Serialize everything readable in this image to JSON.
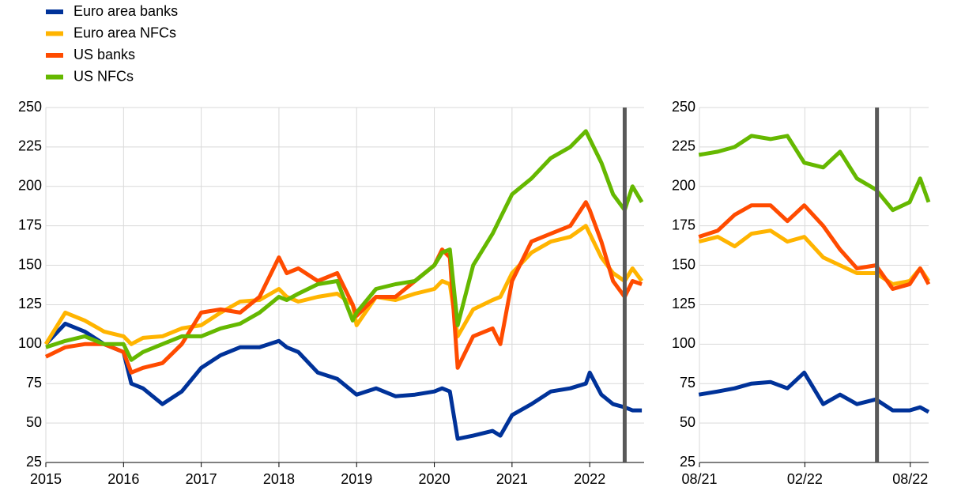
{
  "chart_data": [
    {
      "type": "line",
      "x": [
        2015.0,
        2015.25,
        2015.5,
        2015.75,
        2016.0,
        2016.1,
        2016.25,
        2016.5,
        2016.75,
        2017.0,
        2017.25,
        2017.5,
        2017.75,
        2018.0,
        2018.1,
        2018.25,
        2018.5,
        2018.75,
        2018.95,
        2019.0,
        2019.25,
        2019.5,
        2019.75,
        2020.0,
        2020.1,
        2020.2,
        2020.3,
        2020.5,
        2020.75,
        2020.85,
        2021.0,
        2021.25,
        2021.5,
        2021.75,
        2021.95,
        2022.0,
        2022.15,
        2022.3,
        2022.45,
        2022.55,
        2022.67
      ],
      "series": [
        {
          "name": "Euro area banks",
          "color": "#003299",
          "values": [
            100,
            113,
            108,
            100,
            95,
            75,
            72,
            62,
            70,
            85,
            93,
            98,
            98,
            102,
            98,
            95,
            82,
            78,
            70,
            68,
            72,
            67,
            68,
            70,
            72,
            70,
            40,
            42,
            45,
            42,
            55,
            62,
            70,
            72,
            75,
            82,
            68,
            62,
            60,
            58,
            58
          ]
        },
        {
          "name": "Euro area NFCs",
          "color": "#ffb400",
          "values": [
            100,
            120,
            115,
            108,
            105,
            100,
            104,
            105,
            110,
            112,
            120,
            127,
            128,
            135,
            130,
            127,
            130,
            132,
            125,
            112,
            130,
            128,
            132,
            135,
            140,
            138,
            105,
            122,
            128,
            130,
            145,
            158,
            165,
            168,
            175,
            170,
            155,
            145,
            140,
            148,
            140
          ]
        },
        {
          "name": "US banks",
          "color": "#ff4b00",
          "values": [
            92,
            98,
            100,
            100,
            95,
            82,
            85,
            88,
            100,
            120,
            122,
            120,
            130,
            155,
            145,
            148,
            140,
            145,
            125,
            118,
            130,
            130,
            140,
            150,
            160,
            155,
            85,
            105,
            110,
            100,
            140,
            165,
            170,
            175,
            190,
            185,
            165,
            140,
            130,
            140,
            138
          ]
        },
        {
          "name": "US NFCs",
          "color": "#65b800",
          "values": [
            98,
            102,
            105,
            100,
            100,
            90,
            95,
            100,
            105,
            105,
            110,
            113,
            120,
            130,
            128,
            132,
            138,
            140,
            115,
            120,
            135,
            138,
            140,
            150,
            158,
            160,
            112,
            150,
            170,
            180,
            195,
            205,
            218,
            225,
            235,
            230,
            215,
            195,
            185,
            200,
            190
          ]
        }
      ],
      "xlim": [
        2015,
        2022.7
      ],
      "xticks": [
        2015,
        2016,
        2017,
        2018,
        2019,
        2020,
        2021,
        2022
      ],
      "ylim": [
        25,
        250
      ],
      "yticks": [
        25,
        50,
        75,
        100,
        125,
        150,
        175,
        200,
        225,
        250
      ],
      "grid": true,
      "legend": "top-left",
      "vertical_line": {
        "x": 2022.45,
        "color": "#595959"
      }
    },
    {
      "type": "line",
      "x": [
        2021.58,
        2021.67,
        2021.75,
        2021.83,
        2021.92,
        2022.0,
        2022.08,
        2022.17,
        2022.25,
        2022.33,
        2022.42,
        2022.5,
        2022.58,
        2022.63,
        2022.67
      ],
      "series": [
        {
          "name": "Euro area banks",
          "color": "#003299",
          "values": [
            68,
            70,
            72,
            75,
            76,
            72,
            82,
            62,
            68,
            62,
            65,
            58,
            58,
            60,
            57
          ]
        },
        {
          "name": "Euro area NFCs",
          "color": "#ffb400",
          "values": [
            165,
            168,
            162,
            170,
            172,
            165,
            168,
            155,
            150,
            145,
            145,
            138,
            140,
            148,
            140
          ]
        },
        {
          "name": "US banks",
          "color": "#ff4b00",
          "values": [
            168,
            172,
            182,
            188,
            188,
            178,
            188,
            175,
            160,
            148,
            150,
            135,
            138,
            148,
            138
          ]
        },
        {
          "name": "US NFCs",
          "color": "#65b800",
          "values": [
            220,
            222,
            225,
            232,
            230,
            232,
            215,
            212,
            222,
            205,
            198,
            185,
            190,
            205,
            190
          ]
        }
      ],
      "xlim": [
        2021.583,
        2022.67
      ],
      "xticks": [
        {
          "value": 2021.583,
          "label": "08/21"
        },
        {
          "value": 2022.083,
          "label": "02/22"
        },
        {
          "value": 2022.583,
          "label": "08/22"
        }
      ],
      "ylim": [
        25,
        250
      ],
      "yticks": [
        25,
        50,
        75,
        100,
        125,
        150,
        175,
        200,
        225,
        250
      ],
      "grid": true,
      "vertical_line": {
        "x": 2022.425,
        "color": "#595959"
      }
    }
  ]
}
